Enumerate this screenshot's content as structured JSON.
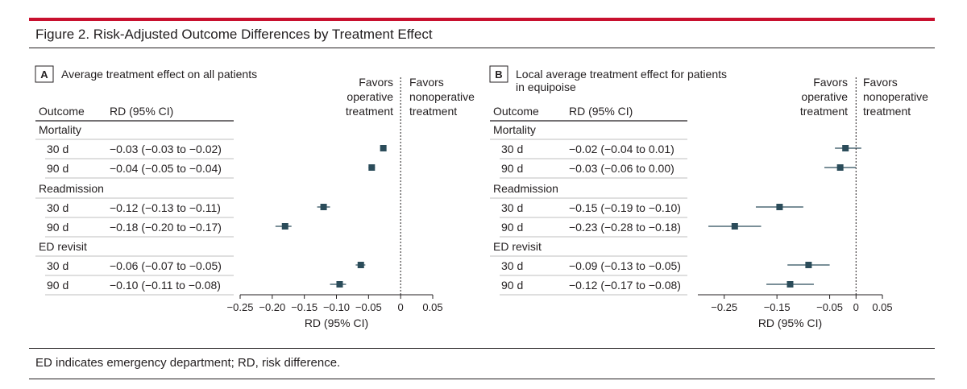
{
  "figure_title": "Figure 2. Risk-Adjusted Outcome Differences by Treatment Effect",
  "footnote": "ED indicates emergency department; RD, risk difference.",
  "colors": {
    "accent": "#c8102e",
    "marker": "#2b4c5a",
    "text": "#231f20"
  },
  "chart_data": [
    {
      "type": "forest",
      "panel_letter": "A",
      "title": "Average treatment effect on all patients",
      "column_headers": {
        "outcome": "Outcome",
        "rd": "RD (95% CI)"
      },
      "favors_left": [
        "Favors",
        "operative",
        "treatment"
      ],
      "favors_right": [
        "Favors",
        "nonoperative",
        "treatment"
      ],
      "xlabel": "RD (95% CI)",
      "xlim": [
        -0.25,
        0.05
      ],
      "xticks": [
        -0.25,
        -0.2,
        -0.15,
        -0.1,
        -0.05,
        0,
        0.05
      ],
      "xtick_labels": [
        "−0.25",
        "−0.20",
        "−0.15",
        "−0.10",
        "−0.05",
        "0",
        "0.05"
      ],
      "groups": [
        {
          "name": "Mortality",
          "rows": [
            {
              "label": "30 d",
              "ci_text": "−0.03 (−0.03 to −0.02)",
              "rd": -0.027,
              "lo": -0.03,
              "hi": -0.025
            },
            {
              "label": "90 d",
              "ci_text": "−0.04 (−0.05 to −0.04)",
              "rd": -0.045,
              "lo": -0.05,
              "hi": -0.04
            }
          ]
        },
        {
          "name": "Readmission",
          "rows": [
            {
              "label": "30 d",
              "ci_text": "−0.12 (−0.13 to −0.11)",
              "rd": -0.12,
              "lo": -0.13,
              "hi": -0.11
            },
            {
              "label": "90 d",
              "ci_text": "−0.18 (−0.20 to −0.17)",
              "rd": -0.18,
              "lo": -0.195,
              "hi": -0.17
            }
          ]
        },
        {
          "name": "ED revisit",
          "rows": [
            {
              "label": "30 d",
              "ci_text": "−0.06 (−0.07 to −0.05)",
              "rd": -0.062,
              "lo": -0.07,
              "hi": -0.055
            },
            {
              "label": "90 d",
              "ci_text": "−0.10 (−0.11 to −0.08)",
              "rd": -0.095,
              "lo": -0.11,
              "hi": -0.085
            }
          ]
        }
      ]
    },
    {
      "type": "forest",
      "panel_letter": "B",
      "title_lines": [
        "Local average treatment effect for patients",
        "in equipoise"
      ],
      "column_headers": {
        "outcome": "Outcome",
        "rd": "RD (95% CI)"
      },
      "favors_left": [
        "Favors",
        "operative",
        "treatment"
      ],
      "favors_right": [
        "Favors",
        "nonoperative",
        "treatment"
      ],
      "xlabel": "RD (95% CI)",
      "xlim": [
        -0.3,
        0.05
      ],
      "xticks": [
        -0.25,
        -0.15,
        -0.05,
        0,
        0.05
      ],
      "xtick_labels": [
        "−0.25",
        "−0.15",
        "−0.05",
        "0",
        "0.05"
      ],
      "groups": [
        {
          "name": "Mortality",
          "rows": [
            {
              "label": "30 d",
              "ci_text": "−0.02 (−0.04 to 0.01)",
              "rd": -0.02,
              "lo": -0.04,
              "hi": 0.01
            },
            {
              "label": "90 d",
              "ci_text": "−0.03 (−0.06 to 0.00)",
              "rd": -0.03,
              "lo": -0.06,
              "hi": 0.0
            }
          ]
        },
        {
          "name": "Readmission",
          "rows": [
            {
              "label": "30 d",
              "ci_text": "−0.15 (−0.19 to −0.10)",
              "rd": -0.145,
              "lo": -0.19,
              "hi": -0.1
            },
            {
              "label": "90 d",
              "ci_text": "−0.23 (−0.28 to −0.18)",
              "rd": -0.23,
              "lo": -0.28,
              "hi": -0.18
            }
          ]
        },
        {
          "name": "ED revisit",
          "rows": [
            {
              "label": "30 d",
              "ci_text": "−0.09 (−0.13 to −0.05)",
              "rd": -0.09,
              "lo": -0.13,
              "hi": -0.05
            },
            {
              "label": "90 d",
              "ci_text": "−0.12 (−0.17 to −0.08)",
              "rd": -0.125,
              "lo": -0.17,
              "hi": -0.08
            }
          ]
        }
      ]
    }
  ]
}
